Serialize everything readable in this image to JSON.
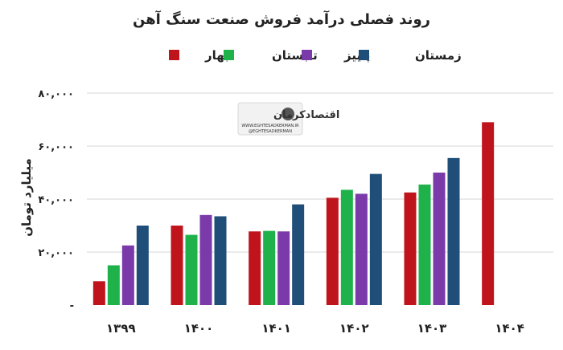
{
  "chart_data": {
    "type": "bar",
    "title": "روند فصلی درآمد فروش صنعت سنگ آهن",
    "ylabel": "میلیارد تومان",
    "xlabel": "",
    "categories": [
      "۱۳۹۹",
      "۱۴۰۰",
      "۱۴۰۱",
      "۱۴۰۲",
      "۱۴۰۳",
      "۱۴۰۴"
    ],
    "series": [
      {
        "name": "بهار",
        "color": "#c0141c",
        "values": [
          9000,
          30000,
          27800,
          40500,
          42500,
          69000
        ]
      },
      {
        "name": "تابستان",
        "color": "#1fb24a",
        "values": [
          15000,
          26500,
          28000,
          43500,
          45500,
          null
        ]
      },
      {
        "name": "پاییز",
        "color": "#7a3aa9",
        "values": [
          22500,
          34000,
          27800,
          42000,
          50000,
          null
        ]
      },
      {
        "name": "زمستان",
        "color": "#1f4e79",
        "values": [
          30000,
          33500,
          38000,
          49500,
          55500,
          null
        ]
      }
    ],
    "ylim": [
      0,
      80000
    ],
    "yticks": [
      0,
      20000,
      40000,
      60000,
      80000
    ],
    "ytick_labels": [
      "-",
      "۲۰,۰۰۰",
      "۴۰,۰۰۰",
      "۶۰,۰۰۰",
      "۸۰,۰۰۰"
    ],
    "grid": true,
    "legend_position": "top"
  },
  "watermark": {
    "name": "اقتصادکرمان",
    "url": "WWW.EGHTESADKERMAN.IR",
    "handle": "@EGHTESADKERMAN"
  }
}
